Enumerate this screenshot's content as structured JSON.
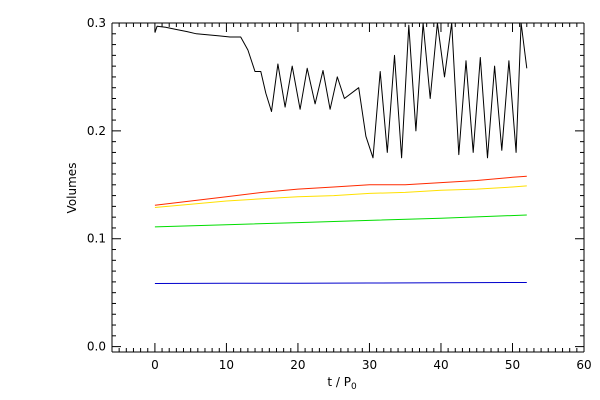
{
  "chart_data": {
    "type": "line",
    "title": "",
    "xlabel": "t / P",
    "xlabel_sub": "0",
    "ylabel": "Volumes",
    "xlim": [
      -6,
      60
    ],
    "ylim": [
      -0.005,
      0.3
    ],
    "grid": false,
    "legend": "none",
    "x_ticks": [
      {
        "value": 0,
        "label": "0"
      },
      {
        "value": 10,
        "label": "10"
      },
      {
        "value": 20,
        "label": "20"
      },
      {
        "value": 30,
        "label": "30"
      },
      {
        "value": 40,
        "label": "40"
      },
      {
        "value": 50,
        "label": "50"
      },
      {
        "value": 60,
        "label": "60"
      }
    ],
    "y_ticks": [
      {
        "value": 0.0,
        "label": "0.0"
      },
      {
        "value": 0.1,
        "label": "0.1"
      },
      {
        "value": 0.2,
        "label": "0.2"
      },
      {
        "value": 0.3,
        "label": "0.3"
      }
    ],
    "series": [
      {
        "color": "#000000",
        "x": [
          0,
          0.3,
          1.5,
          3,
          4.5,
          5.8,
          7.5,
          9,
          10.5,
          12,
          13,
          14,
          14.8,
          15.5,
          16.3,
          17.2,
          18.2,
          19.2,
          20.3,
          21.3,
          22.4,
          23.5,
          24.5,
          25.5,
          26.5,
          28.5,
          29.5,
          30.5,
          31.5,
          32.5,
          33.5,
          34.5,
          35.5,
          36.5,
          37.5,
          38.5,
          39.5,
          40.5,
          41.5,
          42.5,
          43.5,
          44.5,
          45.5,
          46.5,
          47.5,
          48.5,
          49.5,
          50.5,
          51.2,
          52
        ],
        "y": [
          0.291,
          0.297,
          0.296,
          0.294,
          0.292,
          0.29,
          0.289,
          0.288,
          0.287,
          0.287,
          0.275,
          0.255,
          0.255,
          0.235,
          0.218,
          0.262,
          0.222,
          0.26,
          0.22,
          0.258,
          0.225,
          0.256,
          0.22,
          0.25,
          0.23,
          0.24,
          0.195,
          0.175,
          0.255,
          0.18,
          0.27,
          0.175,
          0.298,
          0.2,
          0.3,
          0.23,
          0.3,
          0.25,
          0.3,
          0.178,
          0.265,
          0.18,
          0.268,
          0.175,
          0.26,
          0.182,
          0.265,
          0.18,
          0.3,
          0.258
        ]
      },
      {
        "color": "#ff2a00",
        "x": [
          0,
          5,
          10,
          15,
          20,
          25,
          30,
          35,
          40,
          45,
          50,
          52
        ],
        "y": [
          0.131,
          0.135,
          0.139,
          0.143,
          0.146,
          0.148,
          0.15,
          0.15,
          0.152,
          0.154,
          0.157,
          0.158
        ]
      },
      {
        "color": "#ffe000",
        "x": [
          0,
          5,
          10,
          15,
          20,
          25,
          30,
          35,
          40,
          45,
          50,
          52
        ],
        "y": [
          0.129,
          0.132,
          0.135,
          0.137,
          0.139,
          0.14,
          0.142,
          0.143,
          0.145,
          0.146,
          0.148,
          0.149
        ]
      },
      {
        "color": "#00dd00",
        "x": [
          0,
          10,
          20,
          30,
          40,
          52
        ],
        "y": [
          0.111,
          0.113,
          0.115,
          0.117,
          0.119,
          0.122
        ]
      },
      {
        "color": "#0000cc",
        "x": [
          0,
          10,
          20,
          30,
          40,
          52
        ],
        "y": [
          0.0585,
          0.0587,
          0.0588,
          0.059,
          0.0592,
          0.0594
        ]
      }
    ]
  }
}
